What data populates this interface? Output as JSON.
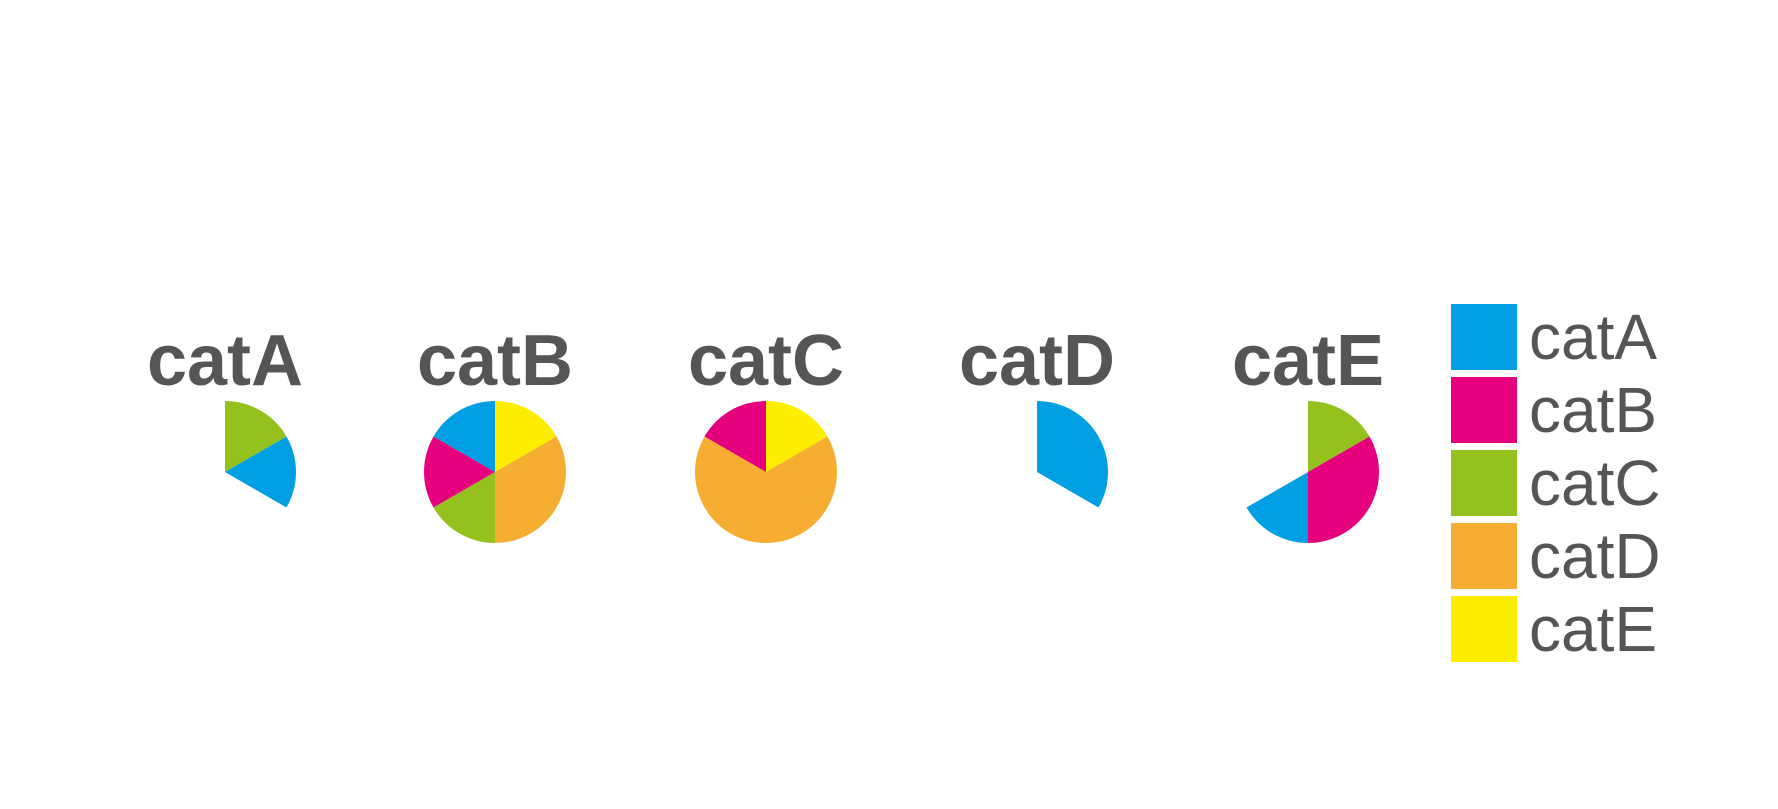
{
  "chart_data": {
    "type": "pie",
    "title": "",
    "legend_position": "right",
    "text_color": "#555555",
    "categories": [
      "catA",
      "catB",
      "catC",
      "catD",
      "catE"
    ],
    "colors": {
      "catA": "#009fe3",
      "catB": "#e5007e",
      "catC": "#95c11e",
      "catD": "#f7ad32",
      "catE": "#ffed00"
    },
    "facets": [
      {
        "title": "catA",
        "full_circle": 12,
        "slices": [
          {
            "category": "catC",
            "value": 2
          },
          {
            "category": "catA",
            "value": 2
          }
        ]
      },
      {
        "title": "catB",
        "full_circle": 12,
        "slices": [
          {
            "category": "catE",
            "value": 2
          },
          {
            "category": "catD",
            "value": 4
          },
          {
            "category": "catC",
            "value": 2
          },
          {
            "category": "catB",
            "value": 2
          },
          {
            "category": "catA",
            "value": 2
          }
        ]
      },
      {
        "title": "catC",
        "full_circle": 12,
        "slices": [
          {
            "category": "catE",
            "value": 2
          },
          {
            "category": "catD",
            "value": 8
          },
          {
            "category": "catB",
            "value": 2
          }
        ]
      },
      {
        "title": "catD",
        "full_circle": 12,
        "slices": [
          {
            "category": "catA",
            "value": 4
          }
        ]
      },
      {
        "title": "catE",
        "full_circle": 12,
        "slices": [
          {
            "category": "catC",
            "value": 2
          },
          {
            "category": "catB",
            "value": 4
          },
          {
            "category": "catA",
            "value": 2
          }
        ]
      }
    ],
    "legend": {
      "entries": [
        "catA",
        "catB",
        "catC",
        "catD",
        "catE"
      ]
    }
  }
}
